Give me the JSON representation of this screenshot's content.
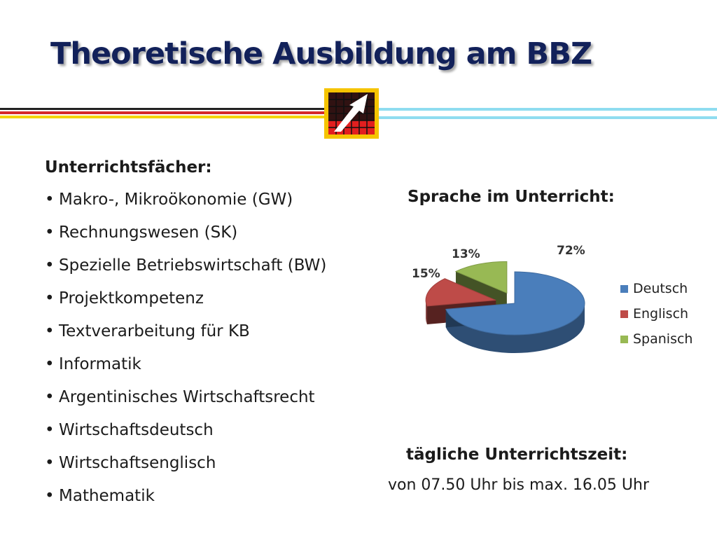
{
  "title": "Theoretische Ausbildung am BBZ",
  "subjects": {
    "heading": "Unterrichtsfächer:",
    "items": [
      "Makro-, Mikroökonomie (GW)",
      "Rechnungswesen (SK)",
      "Spezielle Betriebswirtschaft (BW)",
      "Projektkompetenz",
      "Textverarbeitung für KB",
      "Informatik",
      "Argentinisches Wirtschaftsrecht",
      "Wirtschaftsdeutsch",
      "Wirtschaftsenglisch",
      "Mathematik"
    ]
  },
  "chart_data": {
    "type": "pie",
    "title": "Sprache im Unterricht:",
    "categories": [
      "Deutsch",
      "Englisch",
      "Spanisch"
    ],
    "values": [
      72,
      15,
      13
    ],
    "labels": [
      "72%",
      "15%",
      "13%"
    ],
    "colors": [
      "#4a7ebb",
      "#be4b48",
      "#98b954"
    ],
    "legend_position": "right",
    "style": "3d-exploded"
  },
  "schedule": {
    "heading": "tägliche Unterrichtszeit:",
    "value": "von 07.50 Uhr bis max. 16.05 Uhr"
  }
}
